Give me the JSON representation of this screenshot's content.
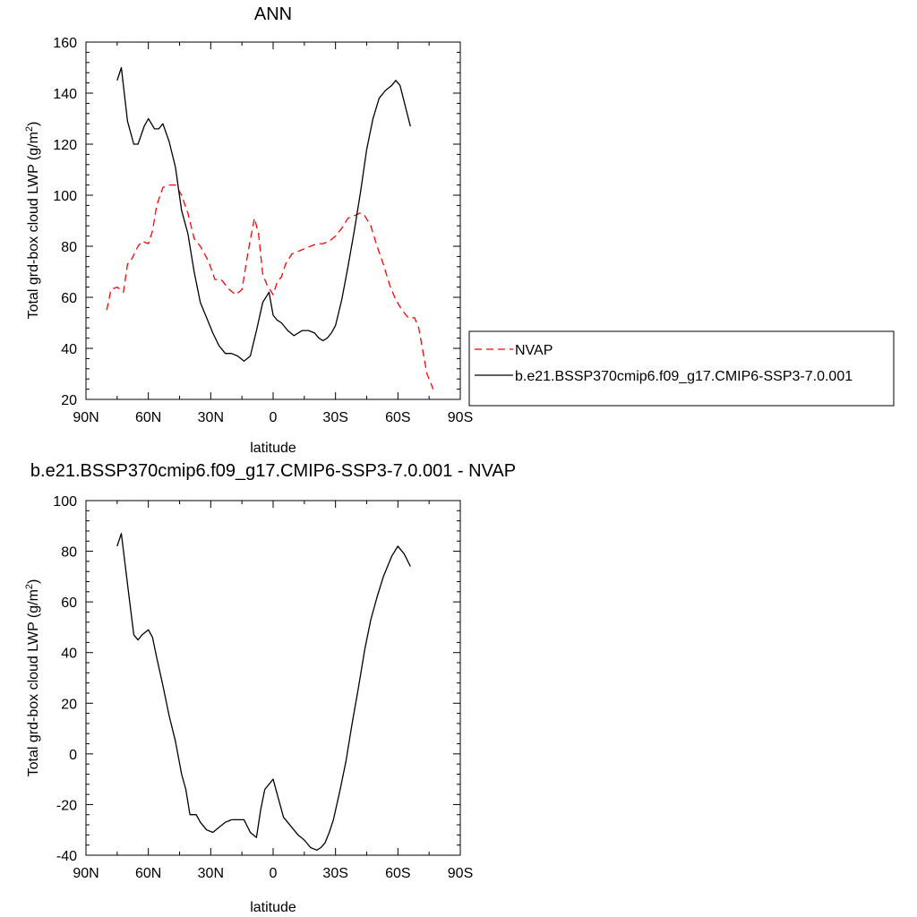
{
  "chart_data": [
    {
      "type": "line",
      "title": "ANN",
      "xlabel": "latitude",
      "ylabel_main": "Total grd-box cloud LWP (g/m",
      "ylabel_sup": "2",
      "ylabel_close": ")",
      "xlim": [
        90,
        -90
      ],
      "ylim": [
        20,
        160
      ],
      "x_ticks": [
        90,
        60,
        30,
        0,
        -30,
        -60,
        -90
      ],
      "x_tick_labels": [
        "90N",
        "60N",
        "30N",
        "0",
        "30S",
        "60S",
        "90S"
      ],
      "y_ticks": [
        20,
        40,
        60,
        80,
        100,
        120,
        140,
        160
      ],
      "y_tick_labels": [
        "20",
        "40",
        "60",
        "80",
        "100",
        "120",
        "140",
        "160"
      ],
      "grid": false,
      "legend_position": "right",
      "series": [
        {
          "name": "NVAP",
          "color": "#ff0000",
          "dash": "dashed",
          "x": [
            80,
            78,
            75,
            72,
            70,
            68,
            65,
            63,
            60,
            58,
            56,
            53,
            50,
            47,
            44,
            41,
            38,
            35,
            31,
            28,
            25,
            21,
            18,
            15,
            12,
            9,
            7,
            5,
            3,
            0,
            -2,
            -4,
            -6,
            -9,
            -12,
            -15,
            -18,
            -21,
            -24,
            -27,
            -30,
            -33,
            -36,
            -39,
            -42,
            -44,
            -47,
            -50,
            -53,
            -56,
            -59,
            -62,
            -65,
            -68,
            -70,
            -72,
            -74,
            -77
          ],
          "y": [
            55,
            63,
            64,
            62,
            73,
            75,
            80,
            82,
            81,
            86,
            96,
            103,
            104,
            104,
            100,
            93,
            83,
            80,
            74,
            67,
            67,
            63,
            61,
            63,
            78,
            91,
            85,
            69,
            65,
            61,
            66,
            68,
            73,
            77,
            78,
            79,
            80,
            81,
            81,
            82,
            84,
            87,
            91,
            92,
            93,
            92,
            88,
            80,
            73,
            65,
            59,
            55,
            52,
            52,
            48,
            39,
            30,
            24
          ]
        },
        {
          "name": "b.e21.BSSP370cmip6.f09_g17.CMIP6-SSP3-7.0.001",
          "color": "#000000",
          "dash": "solid",
          "x": [
            75,
            73,
            70,
            67,
            65,
            62,
            60,
            57,
            55,
            53,
            50,
            47,
            44,
            41,
            38,
            35,
            32,
            29,
            26,
            23,
            20,
            17,
            14,
            11,
            8,
            5,
            2,
            0,
            -2,
            -4,
            -7,
            -10,
            -12,
            -14,
            -17,
            -20,
            -22,
            -24,
            -26,
            -28,
            -30,
            -33,
            -36,
            -39,
            -42,
            -45,
            -48,
            -51,
            -54,
            -57,
            -59,
            -61,
            -66
          ],
          "y": [
            145,
            150,
            129,
            120,
            120,
            127,
            130,
            126,
            126,
            128,
            121,
            111,
            94,
            85,
            70,
            58,
            52,
            46,
            41,
            38,
            38,
            37,
            35,
            37,
            47,
            58,
            62,
            53,
            51,
            50,
            47,
            45,
            46,
            47,
            47,
            46,
            44,
            43,
            44,
            46,
            49,
            59,
            72,
            86,
            101,
            118,
            130,
            138,
            141,
            143,
            145,
            143,
            127
          ]
        }
      ]
    },
    {
      "type": "line",
      "title": "b.e21.BSSP370cmip6.f09_g17.CMIP6-SSP3-7.0.001 - NVAP",
      "xlabel": "latitude",
      "ylabel_main": "Total grd-box cloud LWP (g/m",
      "ylabel_sup": "2",
      "ylabel_close": ")",
      "xlim": [
        90,
        -90
      ],
      "ylim": [
        -40,
        100
      ],
      "x_ticks": [
        90,
        60,
        30,
        0,
        -30,
        -60,
        -90
      ],
      "x_tick_labels": [
        "90N",
        "60N",
        "30N",
        "0",
        "30S",
        "60S",
        "90S"
      ],
      "y_ticks": [
        -40,
        -20,
        0,
        20,
        40,
        60,
        80,
        100
      ],
      "y_tick_labels": [
        "-40",
        "-20",
        "0",
        "20",
        "40",
        "60",
        "80",
        "100"
      ],
      "grid": false,
      "series": [
        {
          "color": "#000000",
          "dash": "solid",
          "x": [
            75,
            73,
            70,
            67,
            65,
            63,
            60,
            58,
            56,
            53,
            50,
            47,
            44,
            42,
            40,
            37,
            35,
            32,
            29,
            26,
            23,
            20,
            17,
            14,
            11,
            8,
            6,
            4,
            2,
            0,
            -2,
            -5,
            -9,
            -12,
            -15,
            -18,
            -21,
            -23,
            -25,
            -27,
            -29,
            -32,
            -35,
            -38,
            -41,
            -44,
            -47,
            -50,
            -53,
            -57,
            -60,
            -63,
            -66
          ],
          "y": [
            82,
            87,
            67,
            47,
            45,
            47,
            49,
            46,
            38,
            27,
            15,
            5,
            -8,
            -14,
            -24,
            -24,
            -27,
            -30,
            -31,
            -29,
            -27,
            -26,
            -26,
            -26,
            -31,
            -33,
            -22,
            -14,
            -12,
            -10,
            -16,
            -25,
            -29,
            -32,
            -34,
            -37,
            -38,
            -37,
            -35,
            -31,
            -26,
            -15,
            -3,
            12,
            26,
            41,
            53,
            62,
            70,
            78,
            82,
            79,
            74
          ]
        }
      ]
    }
  ]
}
